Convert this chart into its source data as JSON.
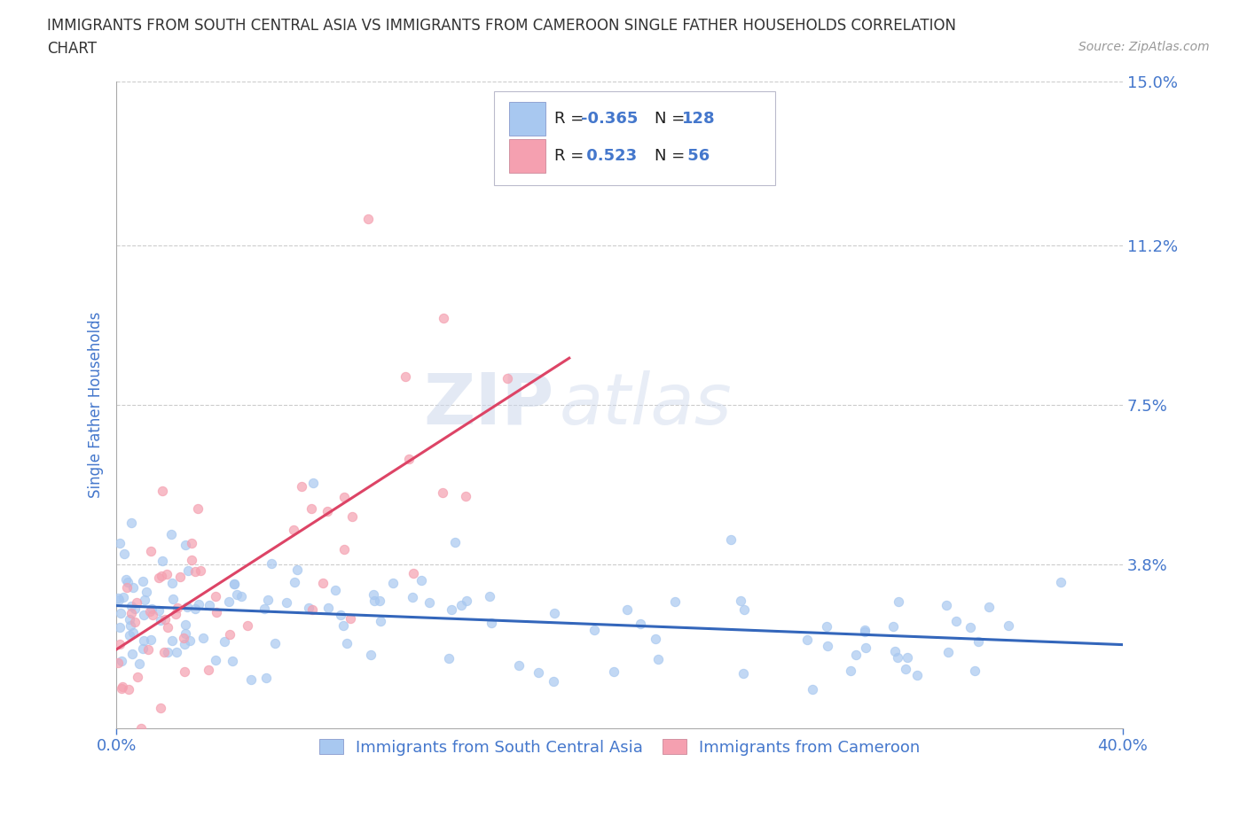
{
  "title_line1": "IMMIGRANTS FROM SOUTH CENTRAL ASIA VS IMMIGRANTS FROM CAMEROON SINGLE FATHER HOUSEHOLDS CORRELATION",
  "title_line2": "CHART",
  "source": "Source: ZipAtlas.com",
  "ylabel": "Single Father Households",
  "xlim": [
    0.0,
    0.4
  ],
  "ylim": [
    0.0,
    0.15
  ],
  "yticks": [
    0.038,
    0.075,
    0.112,
    0.15
  ],
  "ytick_labels": [
    "3.8%",
    "7.5%",
    "11.2%",
    "15.0%"
  ],
  "xticks": [
    0.0,
    0.4
  ],
  "xtick_labels": [
    "0.0%",
    "40.0%"
  ],
  "legend_labels": [
    "Immigrants from South Central Asia",
    "Immigrants from Cameroon"
  ],
  "R_blue": -0.365,
  "N_blue": 128,
  "R_pink": 0.523,
  "N_pink": 56,
  "color_blue": "#a8c8f0",
  "color_pink": "#f5a0b0",
  "line_blue": "#3366bb",
  "line_pink": "#dd4466",
  "watermark_text": "ZIP",
  "watermark_text2": "atlas",
  "background_color": "#ffffff",
  "grid_color": "#cccccc",
  "title_color": "#333333",
  "tick_label_color": "#4477cc",
  "seed": 42
}
